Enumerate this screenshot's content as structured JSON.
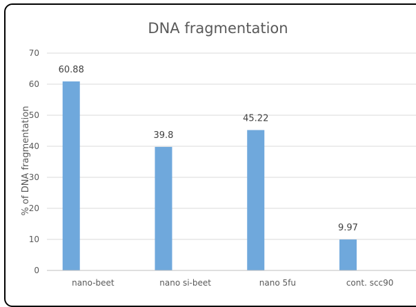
{
  "chart_data": {
    "type": "bar",
    "title": "DNA fragmentation",
    "xlabel": "",
    "ylabel": "% of DNA fragmentation",
    "categories": [
      "nano-beet",
      "nano si-beet",
      "nano 5fu",
      "cont. scc90"
    ],
    "values": [
      60.88,
      39.8,
      45.22,
      9.97
    ],
    "data_labels": [
      "60.88",
      "39.8",
      "45.22",
      "9.97"
    ],
    "ylim": [
      0,
      70
    ],
    "yticks": [
      0,
      10,
      20,
      30,
      40,
      50,
      60,
      70
    ],
    "grid": true,
    "legend": "none",
    "bar_color": "#6fa8dc"
  }
}
